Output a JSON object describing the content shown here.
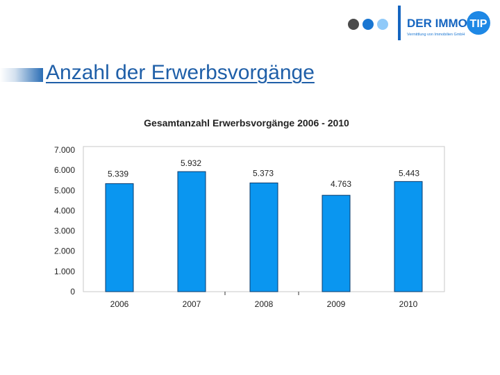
{
  "slide": {
    "title": "Anzahl der Erwerbsvorgänge"
  },
  "logo": {
    "brand_text": "DER IMMO",
    "badge_text": "TIP",
    "tagline": "Vermittlung von Immobilien GmbH"
  },
  "colors": {
    "accent": "#2a6db5",
    "bar": "#0a96f0",
    "bar_border": "#0a3a6b",
    "text": "#222222"
  },
  "chart_data": {
    "type": "bar",
    "title": "Gesamtanzahl Erwerbsvorgänge 2006 - 2010",
    "categories": [
      "2006",
      "2007",
      "2008",
      "2009",
      "2010"
    ],
    "values": [
      5339,
      5932,
      5373,
      4763,
      5443
    ],
    "value_labels": [
      "5.339",
      "5.932",
      "5.373",
      "4.763",
      "5.443"
    ],
    "y_ticks": [
      0,
      1000,
      2000,
      3000,
      4000,
      5000,
      6000,
      7000
    ],
    "y_tick_labels": [
      "0",
      "1.000",
      "2.000",
      "3.000",
      "4.000",
      "5.000",
      "6.000",
      "7.000"
    ],
    "ylim": [
      0,
      7000
    ],
    "grid": false,
    "legend": "none",
    "xlabel": "",
    "ylabel": ""
  }
}
